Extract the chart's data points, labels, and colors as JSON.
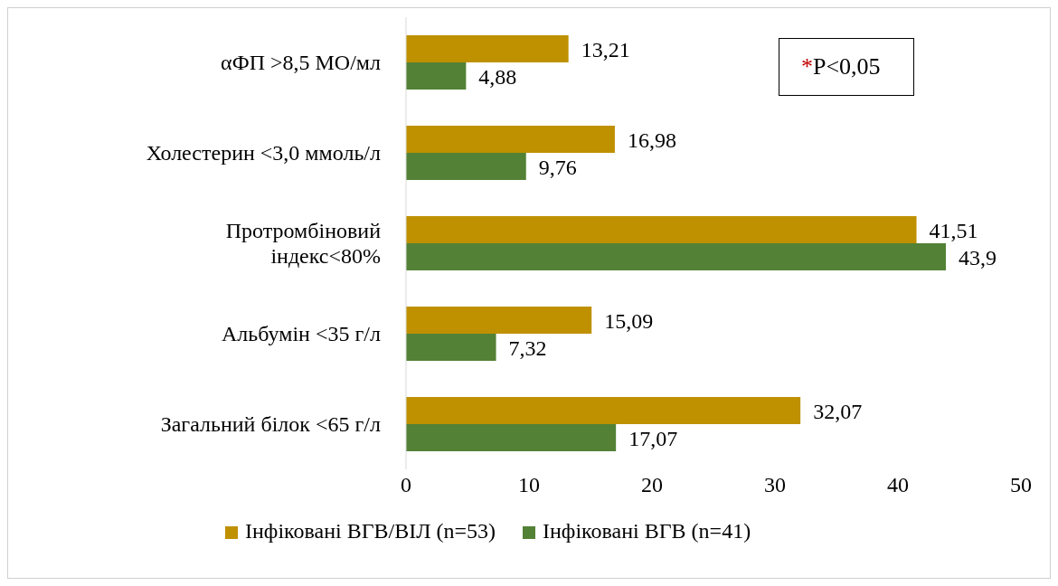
{
  "chart_data": {
    "type": "bar",
    "orientation": "horizontal",
    "categories": [
      "αФП >8,5 МО/мл",
      "Холестерин <3,0 ммоль/л",
      "Протромбіновий індекс<80%",
      "Альбумін <35 г/л",
      "Загальний білок <65 г/л"
    ],
    "series": [
      {
        "name": "Інфіковані ВГВ/ВІЛ (n=53)",
        "color": "#bf9000",
        "values": [
          13.21,
          16.98,
          41.51,
          15.09,
          32.07
        ],
        "value_labels": [
          "13,21",
          "16,98",
          "41,51",
          "15,09",
          "32,07"
        ]
      },
      {
        "name": "Інфіковані ВГВ (n=41)",
        "color": "#538135",
        "values": [
          4.88,
          9.76,
          43.9,
          7.32,
          17.07
        ],
        "value_labels": [
          "4,88",
          "9,76",
          "43,9",
          "7,32",
          "17,07"
        ]
      }
    ],
    "xlim": [
      0,
      50
    ],
    "xticks": [
      0,
      10,
      20,
      30,
      40,
      50
    ],
    "legend": "bottom",
    "annotations": [
      "*P<0,05"
    ]
  }
}
